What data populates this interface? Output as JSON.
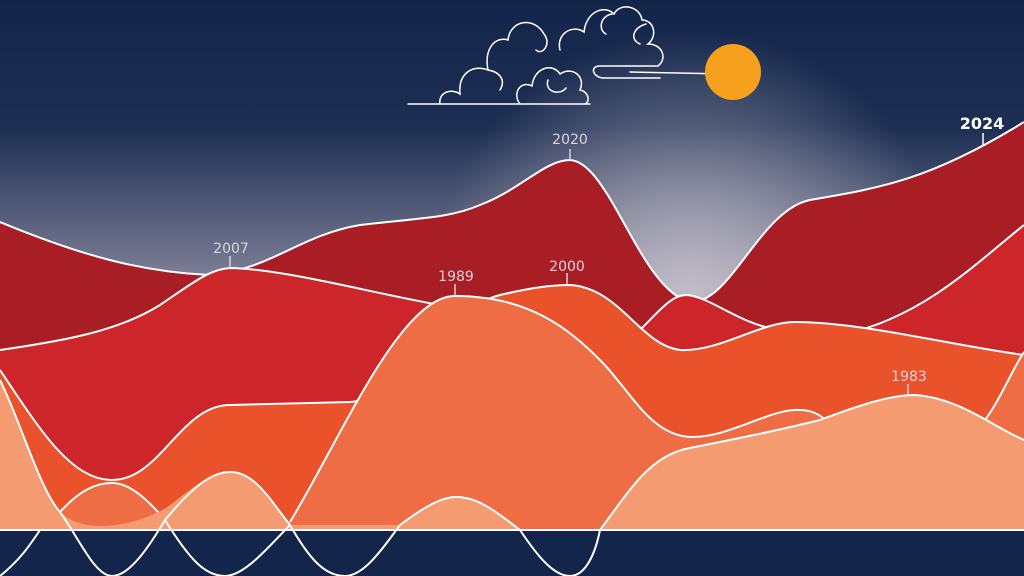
{
  "labels": {
    "peak_2020": "2020",
    "peak_2007": "2007",
    "peak_1989": "1989",
    "peak_2000": "2000",
    "peak_1983": "1983",
    "peak_2024": "2024"
  }
}
